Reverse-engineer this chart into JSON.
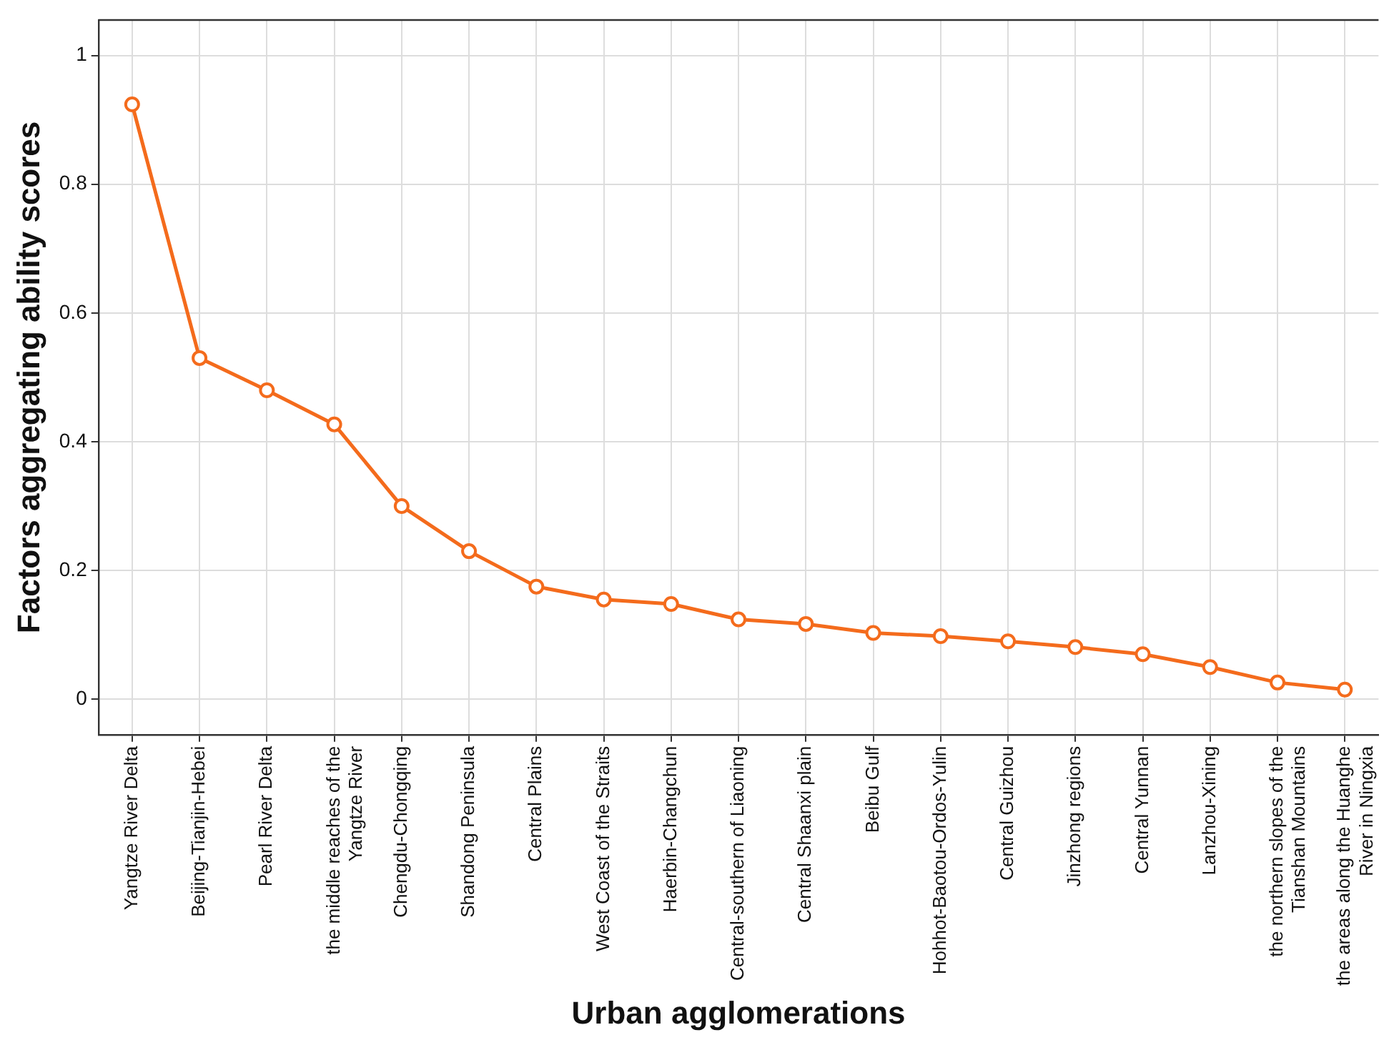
{
  "chart_data": {
    "type": "line",
    "xlabel": "Urban agglomerations",
    "ylabel": "Factors aggregating ability scores",
    "categories": [
      "Yangtze River Delta",
      "Beijing-Tianjin-Hebei",
      "Pearl River Delta",
      "the middle reaches of the Yangtze River",
      "Chengdu-Chongqing",
      "Shandong Peninsula",
      "Central Plains",
      "West Coast of the Straits",
      "Haerbin-Changchun",
      "Central-southern of Liaoning",
      "Central Shaanxi plain",
      "Beibu Gulf",
      "Hohhot-Baotou-Ordos-Yulin",
      "Central Guizhou",
      "Jinzhong regions",
      "Central Yunnan",
      "Lanzhou-Xining",
      "the northern slopes of the Tianshan Mountains",
      "the areas along the Huanghe River in Ningxia"
    ],
    "series": [
      {
        "color": "#f46b1c",
        "values": [
          0.924,
          0.53,
          0.48,
          0.427,
          0.3,
          0.23,
          0.175,
          0.155,
          0.148,
          0.124,
          0.117,
          0.103,
          0.098,
          0.09,
          0.081,
          0.07,
          0.05,
          0.026,
          0.015
        ]
      }
    ],
    "ylim": [
      -0.055,
      1.055
    ],
    "yticks": [
      0,
      0.2,
      0.4,
      0.6,
      0.8,
      1
    ],
    "grid": true,
    "legend": false,
    "marker": "circle",
    "line_style": "solid"
  }
}
